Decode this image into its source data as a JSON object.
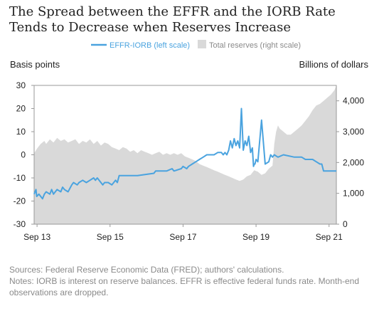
{
  "title": "The Spread between the EFFR and the IORB Rate Tends to Decrease when Reserves Increase",
  "sources": "Sources: Federal Reserve Economic Data (FRED); authors' calculations.",
  "notes": "Notes: IORB is interest on reserve balances. EFFR is effective federal funds rate. Month-end observations are dropped.",
  "colors": {
    "line": "#4aa3df",
    "area": "#d9d9d9",
    "text": "#222222",
    "muted": "#8a8a8a"
  },
  "chart_data": {
    "type": "line",
    "left_axis_label": "Basis points",
    "right_axis_label": "Billions of dollars",
    "x_ticks": [
      "Sep 13",
      "Sep 15",
      "Sep 17",
      "Sep 19",
      "Sep 21"
    ],
    "x_range": [
      2013.67,
      2021.95
    ],
    "ylim_left": [
      -30,
      30
    ],
    "y_ticks_left": [
      30,
      20,
      10,
      0,
      -10,
      -20,
      -30
    ],
    "ylim_right": [
      0,
      4500
    ],
    "y_ticks_right": [
      "4,000",
      "3,000",
      "2,000",
      "1,000",
      "0"
    ],
    "y_ticks_right_values": [
      4000,
      3000,
      2000,
      1000,
      0
    ],
    "legend": {
      "placement": "top-center",
      "items": [
        "EFFR-IORB (left scale)",
        "Total reserves (right scale)"
      ]
    },
    "series": [
      {
        "name": "Total reserves (right scale)",
        "type": "area",
        "x": [
          2013.67,
          2013.75,
          2013.85,
          2013.95,
          2014.0,
          2014.1,
          2014.2,
          2014.3,
          2014.4,
          2014.5,
          2014.6,
          2014.7,
          2014.8,
          2014.9,
          2015.0,
          2015.1,
          2015.2,
          2015.3,
          2015.4,
          2015.5,
          2015.6,
          2015.7,
          2015.8,
          2015.9,
          2016.0,
          2016.1,
          2016.2,
          2016.3,
          2016.4,
          2016.5,
          2016.6,
          2016.7,
          2016.8,
          2016.9,
          2017.0,
          2017.1,
          2017.2,
          2017.3,
          2017.4,
          2017.5,
          2017.6,
          2017.7,
          2017.8,
          2017.9,
          2018.0,
          2018.1,
          2018.2,
          2018.3,
          2018.4,
          2018.5,
          2018.6,
          2018.7,
          2018.8,
          2018.9,
          2019.0,
          2019.1,
          2019.2,
          2019.3,
          2019.4,
          2019.5,
          2019.6,
          2019.7,
          2019.8,
          2019.9,
          2020.0,
          2020.1,
          2020.2,
          2020.25,
          2020.3,
          2020.35,
          2020.4,
          2020.5,
          2020.6,
          2020.7,
          2020.8,
          2020.9,
          2021.0,
          2021.1,
          2021.2,
          2021.3,
          2021.4,
          2021.5,
          2021.6,
          2021.7,
          2021.8,
          2021.9,
          2021.95
        ],
        "values": [
          2300,
          2450,
          2600,
          2700,
          2600,
          2750,
          2650,
          2800,
          2700,
          2750,
          2650,
          2700,
          2750,
          2600,
          2700,
          2650,
          2750,
          2600,
          2700,
          2550,
          2650,
          2600,
          2500,
          2450,
          2400,
          2500,
          2450,
          2350,
          2400,
          2300,
          2400,
          2350,
          2300,
          2250,
          2300,
          2350,
          2250,
          2300,
          2250,
          2300,
          2250,
          2300,
          2200,
          2150,
          2100,
          2050,
          1950,
          1900,
          1850,
          1800,
          1750,
          1700,
          1650,
          1600,
          1550,
          1500,
          1450,
          1400,
          1450,
          1550,
          1600,
          1750,
          1700,
          1600,
          1650,
          1800,
          1900,
          2600,
          3000,
          3200,
          3100,
          3000,
          2900,
          2900,
          3000,
          3100,
          3200,
          3350,
          3500,
          3700,
          3850,
          3900,
          4000,
          4100,
          4200,
          4350,
          4500
        ]
      },
      {
        "name": "EFFR-IORB (left scale)",
        "type": "line",
        "x": [
          2013.67,
          2013.72,
          2013.74,
          2013.8,
          2013.9,
          2013.95,
          2014.0,
          2014.1,
          2014.15,
          2014.2,
          2014.3,
          2014.4,
          2014.45,
          2014.5,
          2014.6,
          2014.7,
          2014.75,
          2014.85,
          2014.9,
          2015.0,
          2015.1,
          2015.2,
          2015.3,
          2015.35,
          2015.4,
          2015.5,
          2015.55,
          2015.6,
          2015.7,
          2015.8,
          2015.9,
          2015.95,
          2016.0,
          2016.5,
          2016.95,
          2017.0,
          2017.3,
          2017.45,
          2017.5,
          2017.7,
          2017.75,
          2017.85,
          2017.9,
          2018.0,
          2018.1,
          2018.2,
          2018.3,
          2018.4,
          2018.5,
          2018.6,
          2018.7,
          2018.75,
          2018.8,
          2018.85,
          2018.9,
          2018.95,
          2019.0,
          2019.05,
          2019.1,
          2019.15,
          2019.2,
          2019.25,
          2019.3,
          2019.35,
          2019.4,
          2019.45,
          2019.5,
          2019.55,
          2019.6,
          2019.65,
          2019.68,
          2019.7,
          2019.72,
          2019.75,
          2019.8,
          2019.9,
          2020.0,
          2020.1,
          2020.15,
          2020.2,
          2020.25,
          2020.35,
          2020.5,
          2020.8,
          2020.9,
          2021.0,
          2021.1,
          2021.3,
          2021.4,
          2021.5,
          2021.55,
          2021.6,
          2021.95
        ],
        "values": [
          -17,
          -15,
          -18,
          -17,
          -19,
          -17,
          -16,
          -17,
          -15,
          -17,
          -15,
          -16,
          -14,
          -15,
          -16,
          -13,
          -12,
          -13,
          -12,
          -11,
          -12,
          -11,
          -10,
          -11,
          -10,
          -12,
          -13,
          -12,
          -12,
          -13,
          -11,
          -12,
          -9,
          -9,
          -8,
          -7,
          -7,
          -6,
          -7,
          -6,
          -5,
          -6,
          -5,
          -4,
          -3,
          -2,
          -1,
          0,
          0,
          0,
          1,
          1,
          1,
          0,
          1,
          0,
          2,
          6,
          3,
          7,
          4,
          6,
          3,
          20,
          2,
          6,
          4,
          8,
          1,
          3,
          -5,
          -4,
          -4,
          -2,
          -3,
          15,
          -4,
          -3,
          0,
          -1,
          0,
          -1,
          0,
          -1,
          -1,
          -1,
          -2,
          -2,
          -3,
          -4,
          -4,
          -7,
          -7
        ]
      }
    ]
  }
}
